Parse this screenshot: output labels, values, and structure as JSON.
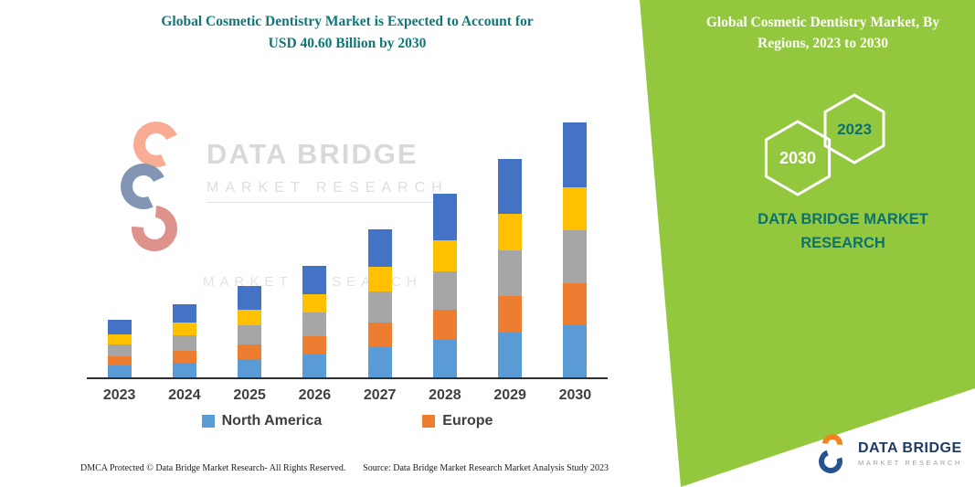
{
  "left_panel": {
    "title_line1": "Global Cosmetic Dentistry Market is Expected to Account for",
    "title_line2": "USD 40.60 Billion by 2030",
    "watermark_line1": "DATA BRIDGE",
    "watermark_line2": "MARKET RESEARCH",
    "watermark_secondary": "MARKET RESEARCH",
    "footer_left": "DMCA Protected © Data Bridge Market Research-  All Rights Reserved.",
    "footer_source": "Source: Data Bridge Market Research  Market Analysis Study 2023"
  },
  "right_panel": {
    "title": "Global Cosmetic Dentistry Market, By Regions, 2023 to 2030",
    "hexagon_back_label": "2030",
    "hexagon_front_label": "2023",
    "brand_text_line1": "DATA BRIDGE MARKET",
    "brand_text_line2": "RESEARCH",
    "panel_color": "#93C83E",
    "accent_teal": "#0C7270"
  },
  "logo": {
    "name_line1": "DATA BRIDGE",
    "name_line2": "MARKET RESEARCH"
  },
  "chart_data": {
    "type": "bar",
    "stacked": true,
    "title": "Global Cosmetic Dentistry Market is Expected to Account for USD 40.60 Billion by 2030",
    "unit": "USD Billion",
    "values_estimated": true,
    "categories": [
      "2023",
      "2024",
      "2025",
      "2026",
      "2027",
      "2028",
      "2029",
      "2030"
    ],
    "series": [
      {
        "name": "North America",
        "color": "#5B9BD5",
        "values": [
          1.9,
          2.3,
          2.9,
          3.6,
          4.8,
          6.0,
          7.1,
          8.3
        ]
      },
      {
        "name": "Europe",
        "color": "#ED7D31",
        "values": [
          1.5,
          1.9,
          2.3,
          2.9,
          3.9,
          4.8,
          5.8,
          6.7
        ]
      },
      {
        "name": "unlabeled-gray",
        "color": "#A6A6A6",
        "values": [
          1.9,
          2.5,
          3.1,
          3.8,
          4.9,
          6.1,
          7.3,
          8.4
        ]
      },
      {
        "name": "unlabeled-yellow",
        "color": "#FFC000",
        "values": [
          1.6,
          2.0,
          2.5,
          2.9,
          3.9,
          4.9,
          5.8,
          6.8
        ]
      },
      {
        "name": "unlabeled-dark-blue",
        "color": "#4472C4",
        "values": [
          2.3,
          2.9,
          3.8,
          4.5,
          6.0,
          7.4,
          8.7,
          10.3
        ]
      }
    ],
    "totals": [
      9.2,
      11.6,
      14.6,
      17.7,
      23.5,
      29.2,
      34.7,
      40.6
    ],
    "legend": [
      "North America",
      "Europe"
    ],
    "legend_position": "bottom",
    "axes": {
      "x_visible": true,
      "y_visible": false,
      "gridlines": false
    },
    "ylim": [
      0,
      43
    ]
  }
}
